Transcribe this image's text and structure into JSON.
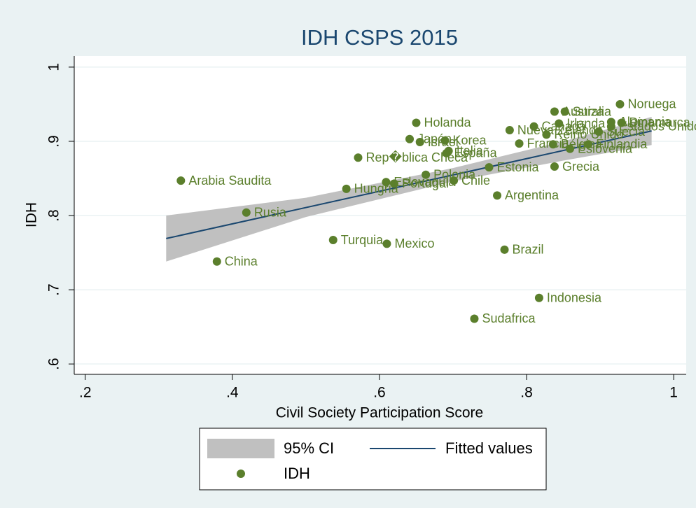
{
  "chart_data": {
    "type": "scatter",
    "title": "IDH CSPS 2015",
    "x_label": "Civil Society Participation Score",
    "y_label": "IDH",
    "xlim": [
      0.185,
      1.017
    ],
    "ylim": [
      0.586,
      1.015
    ],
    "xticks": [
      {
        "value": 0.2,
        "label": ".2"
      },
      {
        "value": 0.4,
        "label": ".4"
      },
      {
        "value": 0.6,
        "label": ".6"
      },
      {
        "value": 0.8,
        "label": ".8"
      },
      1
    ],
    "yticks": [
      {
        "value": 0.6,
        "label": ".6"
      },
      {
        "value": 0.7,
        "label": ".7"
      },
      {
        "value": 0.8,
        "label": ".8"
      },
      {
        "value": 0.9,
        "label": ".9"
      },
      1
    ],
    "grid": true,
    "ci": {
      "name": "95% CI",
      "color": "#c0c0c0",
      "x": [
        0.31,
        0.5,
        0.7,
        0.85,
        0.97
      ],
      "upper": [
        0.8,
        0.824,
        0.864,
        0.9,
        0.933
      ],
      "lower": [
        0.738,
        0.798,
        0.846,
        0.874,
        0.895
      ]
    },
    "fit": {
      "name": "Fitted values",
      "color": "#1a476f",
      "x": [
        0.31,
        0.97
      ],
      "y": [
        0.769,
        0.914
      ]
    },
    "series": [
      {
        "name": "IDH",
        "color": "#5b7f2c",
        "labels": [
          "Noruega",
          "Australia",
          "Suiza",
          "Holanda",
          "Irlanda",
          "Alemania",
          "Dinamarca",
          "Estados Unidos",
          "Canadá",
          "Nueva Zelanda",
          "Reino Unido",
          "Suecia",
          "Bélgica",
          "Francia",
          "Finlandia",
          "Eslovenia",
          "Japón",
          "Israel",
          "Korea",
          "Italia",
          "España",
          "Rep�blica Checa",
          "Grecia",
          "Estonia",
          "Polonia",
          "Chile",
          "Arabia Saudita",
          "Portugal",
          "Eslovaquia",
          "Hungria",
          "Argentina",
          "Rusia",
          "Turquia",
          "Mexico",
          "Brazil",
          "China",
          "Indonesia",
          "Sudafrica"
        ],
        "x": [
          0.927,
          0.838,
          0.852,
          0.65,
          0.844,
          0.915,
          0.929,
          0.915,
          0.81,
          0.777,
          0.827,
          0.898,
          0.836,
          0.79,
          0.884,
          0.859,
          0.641,
          0.655,
          0.689,
          0.694,
          0.691,
          0.571,
          0.838,
          0.749,
          0.663,
          0.701,
          0.33,
          0.62,
          0.609,
          0.555,
          0.76,
          0.419,
          0.537,
          0.61,
          0.77,
          0.379,
          0.817,
          0.729
        ],
        "y": [
          0.95,
          0.94,
          0.94,
          0.925,
          0.924,
          0.926,
          0.925,
          0.92,
          0.92,
          0.915,
          0.909,
          0.913,
          0.896,
          0.897,
          0.896,
          0.89,
          0.903,
          0.899,
          0.901,
          0.887,
          0.884,
          0.878,
          0.866,
          0.865,
          0.855,
          0.847,
          0.847,
          0.843,
          0.845,
          0.836,
          0.827,
          0.804,
          0.767,
          0.762,
          0.754,
          0.738,
          0.689,
          0.661
        ]
      }
    ]
  }
}
